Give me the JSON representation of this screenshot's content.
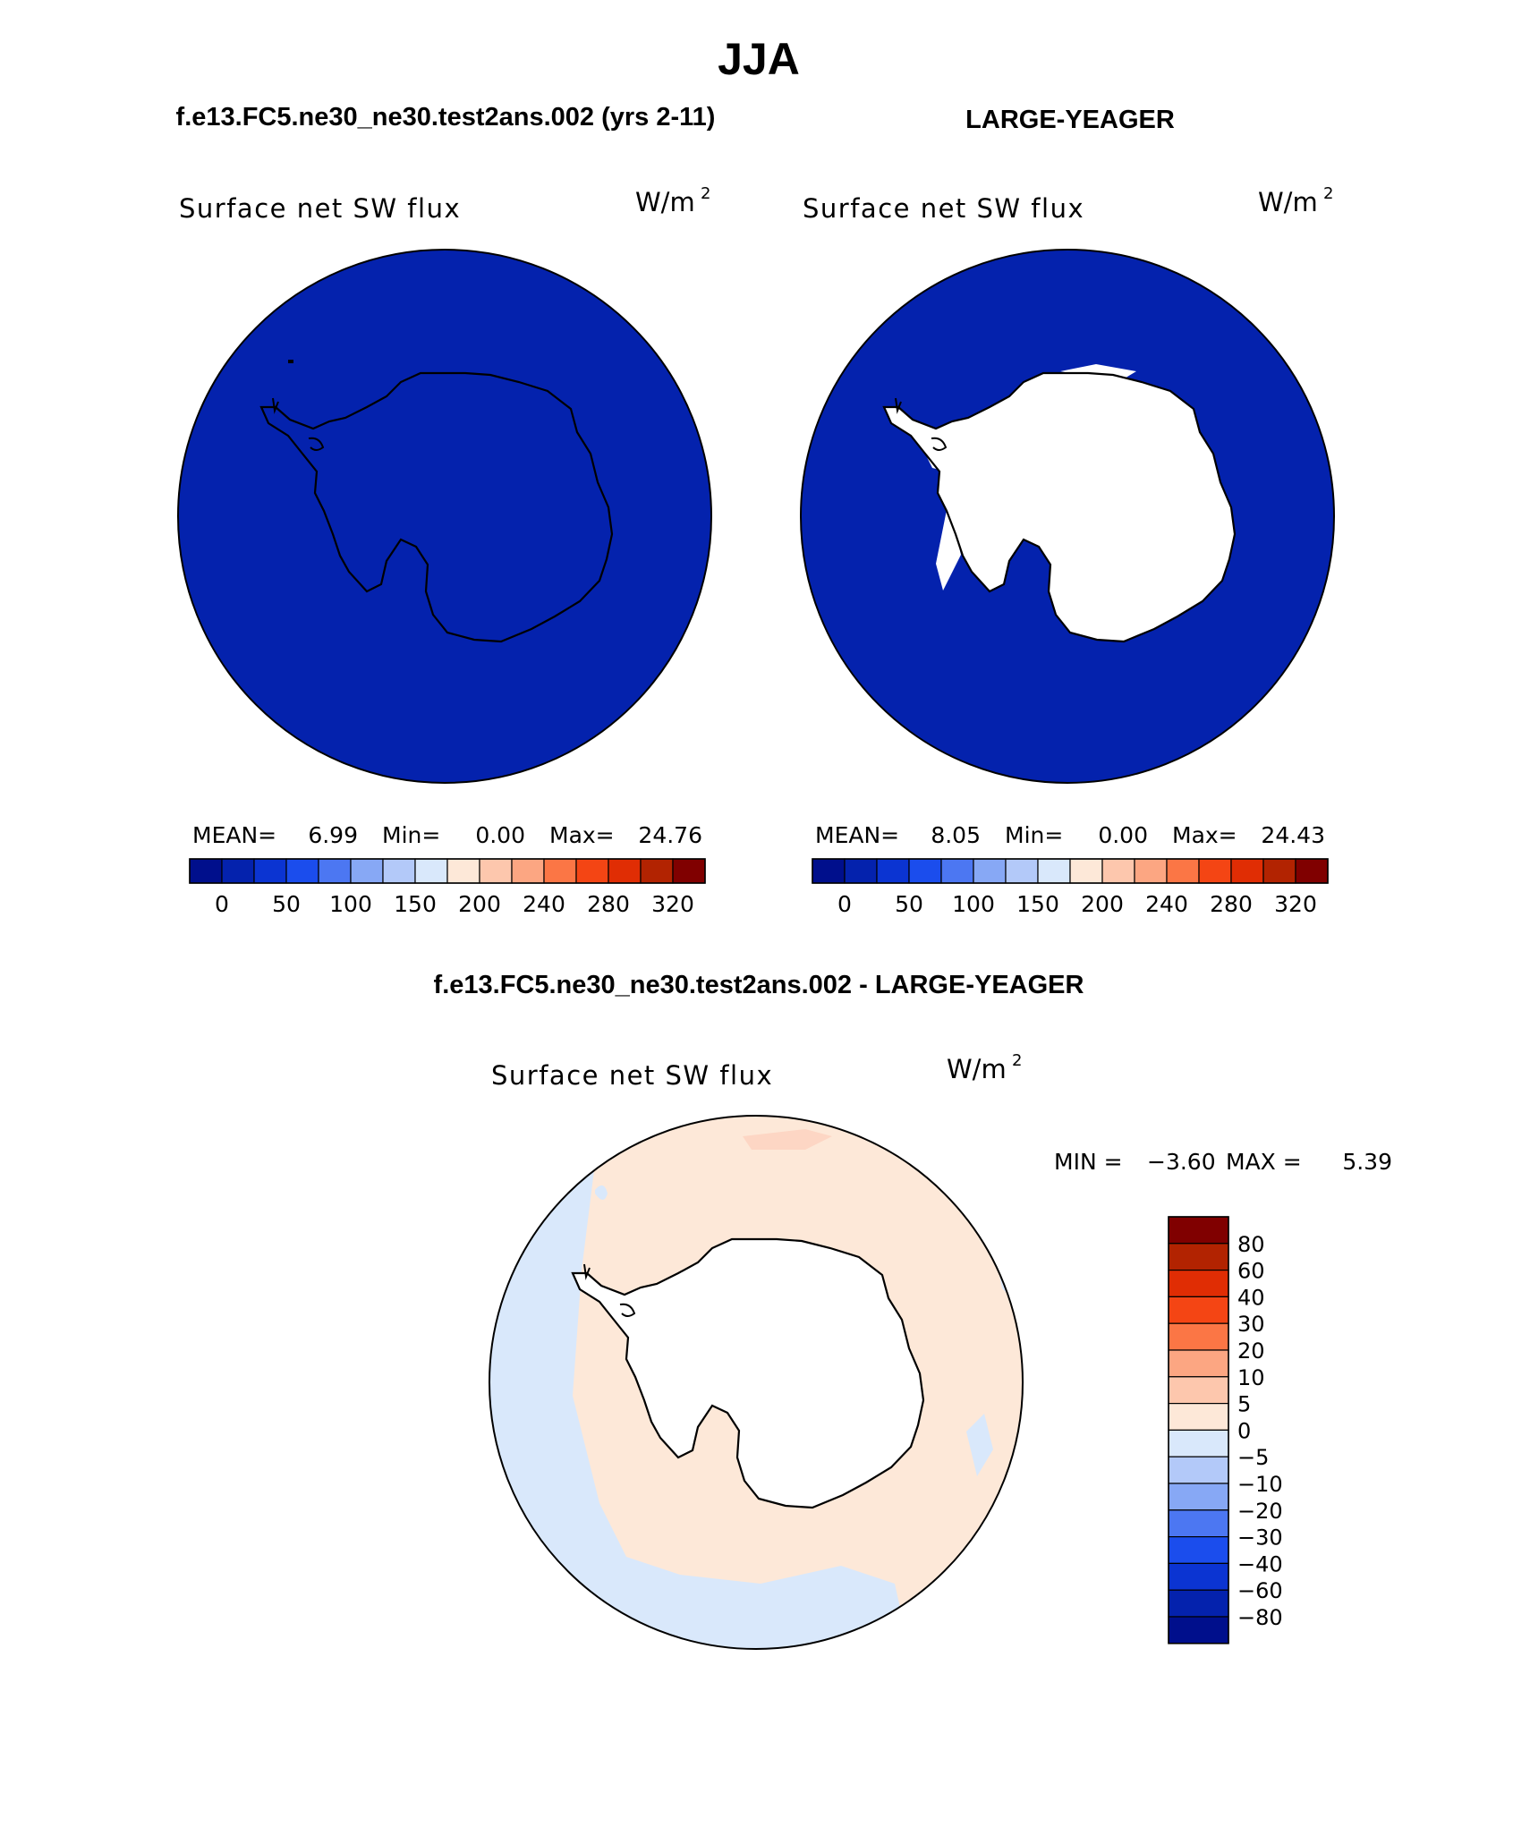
{
  "page_title": "JJA",
  "panels": [
    {
      "case_title": "f.e13.FC5.ne30_ne30.test2ans.002 (yrs 2-11)",
      "variable": "Surface net SW flux",
      "units": "W/m",
      "units_exp": "2",
      "stats": {
        "mean_label": "MEAN=",
        "mean": "6.99",
        "min_label": "Min=",
        "min": "0.00",
        "max_label": "Max=",
        "max": "24.76"
      }
    },
    {
      "case_title": "LARGE-YEAGER",
      "variable": "Surface net SW flux",
      "units": "W/m",
      "units_exp": "2",
      "stats": {
        "mean_label": "MEAN=",
        "mean": "8.05",
        "min_label": "Min=",
        "min": "0.00",
        "max_label": "Max=",
        "max": "24.43"
      }
    }
  ],
  "abs_colorbar": {
    "colors": [
      "#000f8c",
      "#0422ad",
      "#0b34d2",
      "#1b4ded",
      "#4c77f2",
      "#87a8f5",
      "#b3c9f9",
      "#d9e8fb",
      "#fde8d8",
      "#fdc7ad",
      "#fca682",
      "#fb7645",
      "#f44514",
      "#e02d04",
      "#b22301",
      "#800000"
    ],
    "labels": [
      "0",
      "50",
      "100",
      "150",
      "200",
      "240",
      "280",
      "320"
    ]
  },
  "diff": {
    "title": "f.e13.FC5.ne30_ne30.test2ans.002 - LARGE-YEAGER",
    "variable": "Surface net SW flux",
    "units": "W/m",
    "units_exp": "2",
    "minmax": {
      "min_label": "MIN =",
      "min": "−3.60",
      "max_label": "MAX =",
      "max": "5.39"
    },
    "colorbar": {
      "colors": [
        "#800000",
        "#b22301",
        "#e02d04",
        "#f44514",
        "#fb7645",
        "#fca682",
        "#fdc7ad",
        "#fde8d8",
        "#d9e8fb",
        "#b3c9f9",
        "#87a8f5",
        "#4c77f2",
        "#1b4ded",
        "#0b34d2",
        "#0422ad",
        "#000f8c"
      ],
      "labels": [
        "80",
        "60",
        "40",
        "30",
        "20",
        "10",
        "5",
        "0",
        "−5",
        "−10",
        "−20",
        "−30",
        "−40",
        "−60",
        "−80"
      ]
    }
  },
  "map_colors": {
    "ocean_dark": "#0422ad",
    "diff_pos": "#fde8d8",
    "diff_neg": "#d9e8fb",
    "land": "#ffffff"
  }
}
